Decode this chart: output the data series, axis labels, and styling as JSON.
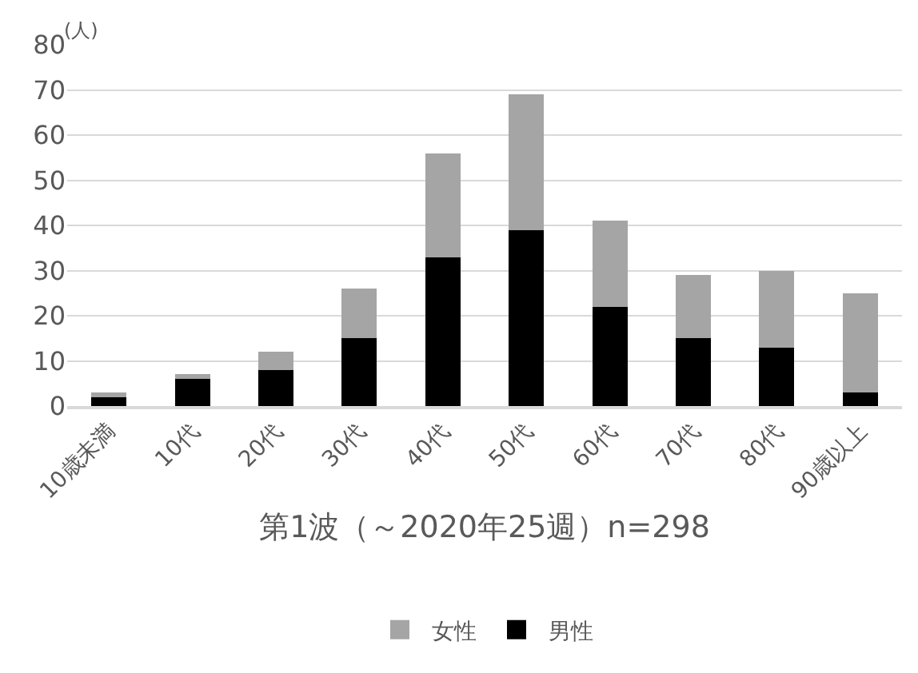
{
  "chart_data": {
    "type": "bar",
    "stacked": true,
    "xlabel": "第1波（～2020年25週）n=298",
    "ylabel": "(人)",
    "categories": [
      "10歳未満",
      "10代",
      "20代",
      "30代",
      "40代",
      "50代",
      "60代",
      "70代",
      "80代",
      "90歳以上"
    ],
    "series": [
      {
        "name": "男性",
        "color": "#000000",
        "values": [
          2,
          6,
          8,
          15,
          33,
          39,
          22,
          15,
          13,
          3
        ]
      },
      {
        "name": "女性",
        "color": "#a5a5a5",
        "values": [
          1,
          1,
          4,
          11,
          23,
          30,
          19,
          14,
          17,
          22
        ]
      }
    ],
    "ylim": [
      0,
      80
    ],
    "yticks": [
      0,
      10,
      20,
      30,
      40,
      50,
      60,
      70,
      80
    ],
    "grid": "y",
    "legend": "bottom"
  }
}
